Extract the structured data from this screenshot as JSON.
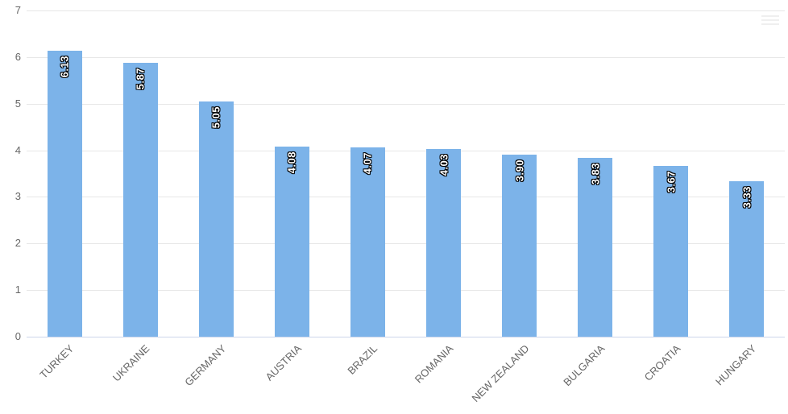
{
  "chart_data": {
    "type": "bar",
    "title": "",
    "xlabel": "",
    "ylabel": "",
    "categories": [
      "TURKEY",
      "UKRAINE",
      "GERMANY",
      "AUSTRIA",
      "BRAZIL",
      "ROMANIA",
      "NEW ZEALAND",
      "BULGARIA",
      "CROATIA",
      "HUNGARY"
    ],
    "values": [
      6.13,
      5.87,
      5.05,
      4.08,
      4.07,
      4.03,
      3.9,
      3.83,
      3.67,
      3.33
    ],
    "value_labels": [
      "6.13",
      "5.87",
      "5.05",
      "4.08",
      "4.07",
      "4.03",
      "3.90",
      "3.83",
      "3.67",
      "3.33"
    ],
    "ylim": [
      0,
      7
    ],
    "yticks": [
      "0",
      "1",
      "2",
      "3",
      "4",
      "5",
      "6",
      "7"
    ],
    "grid": true,
    "legend": false,
    "colors": {
      "bar": "#7cb3e9",
      "gridline": "#e7e7e7",
      "axis_line": "#ccd6eb",
      "tick_label": "#666666",
      "data_label": "#ffffff",
      "data_label_outline": "#000000",
      "background": "#ffffff"
    }
  },
  "menu": {
    "icon": "hamburger-menu-icon"
  }
}
